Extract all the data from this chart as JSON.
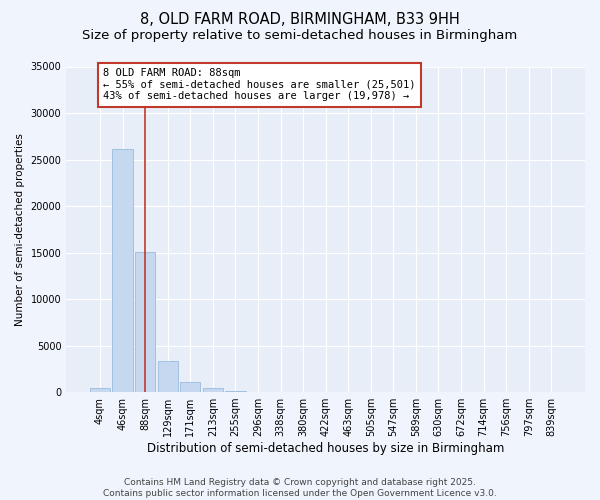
{
  "title": "8, OLD FARM ROAD, BIRMINGHAM, B33 9HH",
  "subtitle": "Size of property relative to semi-detached houses in Birmingham",
  "xlabel": "Distribution of semi-detached houses by size in Birmingham",
  "ylabel": "Number of semi-detached properties",
  "categories": [
    "4sqm",
    "46sqm",
    "88sqm",
    "129sqm",
    "171sqm",
    "213sqm",
    "255sqm",
    "296sqm",
    "338sqm",
    "380sqm",
    "422sqm",
    "463sqm",
    "505sqm",
    "547sqm",
    "589sqm",
    "630sqm",
    "672sqm",
    "714sqm",
    "756sqm",
    "797sqm",
    "839sqm"
  ],
  "values": [
    400,
    26100,
    15100,
    3300,
    1050,
    450,
    130,
    0,
    0,
    0,
    0,
    0,
    0,
    0,
    0,
    0,
    0,
    0,
    0,
    0,
    0
  ],
  "bar_color": "#c5d8f0",
  "bar_edge_color": "#8eb4d8",
  "vline_x": 2,
  "vline_color": "#c0392b",
  "annotation_text": "8 OLD FARM ROAD: 88sqm\n← 55% of semi-detached houses are smaller (25,501)\n43% of semi-detached houses are larger (19,978) →",
  "annotation_box_color": "white",
  "annotation_box_edge_color": "#c0392b",
  "ylim": [
    0,
    35000
  ],
  "yticks": [
    0,
    5000,
    10000,
    15000,
    20000,
    25000,
    30000,
    35000
  ],
  "bg_color": "#f0f4fc",
  "plot_bg_color": "#e8eef8",
  "grid_color": "white",
  "footer": "Contains HM Land Registry data © Crown copyright and database right 2025.\nContains public sector information licensed under the Open Government Licence v3.0.",
  "title_fontsize": 10.5,
  "subtitle_fontsize": 9.5,
  "xlabel_fontsize": 8.5,
  "ylabel_fontsize": 7.5,
  "tick_fontsize": 7,
  "footer_fontsize": 6.5,
  "annot_fontsize": 7.5
}
